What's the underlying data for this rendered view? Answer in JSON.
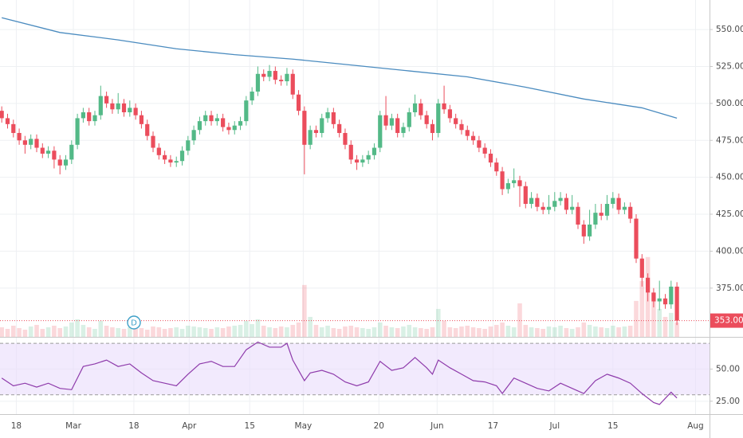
{
  "chart_data": {
    "type": "candlestick",
    "xlim": [
      -0.3,
      121.6
    ],
    "xticks": [
      {
        "value": 2.5,
        "label": "18"
      },
      {
        "value": 12.3,
        "label": "Mar"
      },
      {
        "value": 22.7,
        "label": "18"
      },
      {
        "value": 32.2,
        "label": "Apr"
      },
      {
        "value": 42.6,
        "label": "15"
      },
      {
        "value": 51.8,
        "label": "May"
      },
      {
        "value": 64.8,
        "label": "20"
      },
      {
        "value": 74.8,
        "label": "Jun"
      },
      {
        "value": 84.4,
        "label": "17"
      },
      {
        "value": 95,
        "label": "Jul"
      },
      {
        "value": 105,
        "label": "15"
      },
      {
        "value": 119.2,
        "label": "Aug"
      }
    ],
    "ylim": [
      342,
      570
    ],
    "yticks": [
      {
        "value": 375,
        "label": "375.00"
      },
      {
        "value": 400,
        "label": "400.00"
      },
      {
        "value": 425,
        "label": "425.00"
      },
      {
        "value": 450,
        "label": "450.00"
      },
      {
        "value": 475,
        "label": "475.00"
      },
      {
        "value": 500,
        "label": "500.00"
      },
      {
        "value": 525,
        "label": "525.00"
      },
      {
        "value": 550,
        "label": "550.00"
      }
    ],
    "grid": true,
    "up_color": "#53b987",
    "down_color": "#eb4d5c",
    "open": [
      495,
      490,
      486,
      480,
      475,
      472,
      476,
      470,
      466,
      468,
      462,
      458,
      462,
      472,
      490,
      494,
      488,
      492,
      505,
      500,
      496,
      500,
      494,
      497,
      492,
      486,
      478,
      470,
      465,
      462,
      460,
      461,
      468,
      475,
      482,
      488,
      492,
      488,
      490,
      484,
      482,
      485,
      488,
      502,
      508,
      520,
      518,
      522,
      516,
      515,
      520,
      506,
      495,
      472,
      482,
      480,
      490,
      494,
      486,
      480,
      472,
      462,
      460,
      462,
      465,
      470,
      492,
      485,
      490,
      480,
      484,
      494,
      500,
      492,
      486,
      480,
      500,
      496,
      490,
      486,
      482,
      478,
      475,
      470,
      466,
      460,
      454,
      442,
      446,
      448,
      444,
      432,
      436,
      430,
      428,
      430,
      434,
      436,
      428,
      430,
      418,
      410,
      418,
      426,
      424,
      432,
      436,
      428,
      430,
      422,
      395,
      382,
      372,
      366,
      368,
      364,
      376
    ],
    "high": [
      498,
      493,
      489,
      483,
      478,
      479,
      479,
      473,
      471,
      471,
      465,
      465,
      475,
      493,
      497,
      497,
      495,
      512,
      508,
      503,
      507,
      503,
      502,
      500,
      495,
      489,
      481,
      473,
      468,
      465,
      464,
      471,
      478,
      485,
      491,
      495,
      495,
      493,
      493,
      487,
      488,
      491,
      505,
      511,
      525,
      523,
      526,
      525,
      519,
      524,
      523,
      509,
      498,
      485,
      485,
      493,
      497,
      497,
      489,
      483,
      475,
      465,
      465,
      468,
      473,
      495,
      505,
      493,
      493,
      487,
      497,
      506,
      503,
      495,
      489,
      503,
      512,
      499,
      493,
      489,
      485,
      481,
      478,
      473,
      469,
      463,
      457,
      449,
      456,
      451,
      447,
      440,
      439,
      433,
      438,
      440,
      440,
      439,
      438,
      433,
      421,
      428,
      432,
      432,
      438,
      440,
      439,
      433,
      433,
      425,
      398,
      385,
      375,
      380,
      371,
      380,
      379
    ],
    "low": [
      487,
      483,
      477,
      472,
      466,
      469,
      467,
      463,
      463,
      456,
      452,
      455,
      459,
      469,
      487,
      485,
      485,
      489,
      497,
      493,
      493,
      491,
      491,
      489,
      483,
      475,
      467,
      462,
      459,
      457,
      457,
      458,
      465,
      472,
      479,
      485,
      485,
      485,
      481,
      479,
      479,
      482,
      485,
      499,
      505,
      515,
      515,
      513,
      512,
      512,
      503,
      492,
      452,
      469,
      477,
      477,
      487,
      483,
      477,
      469,
      459,
      455,
      457,
      459,
      462,
      467,
      482,
      482,
      477,
      477,
      481,
      491,
      489,
      483,
      475,
      477,
      493,
      487,
      483,
      479,
      475,
      472,
      467,
      463,
      457,
      451,
      438,
      439,
      443,
      430,
      429,
      429,
      427,
      425,
      425,
      427,
      431,
      425,
      425,
      415,
      405,
      407,
      415,
      421,
      421,
      429,
      425,
      425,
      419,
      392,
      376,
      366,
      362,
      360,
      361,
      361,
      350
    ],
    "close": [
      490,
      486,
      480,
      475,
      472,
      476,
      470,
      466,
      468,
      462,
      458,
      462,
      472,
      490,
      494,
      488,
      492,
      505,
      500,
      496,
      500,
      494,
      497,
      492,
      486,
      478,
      470,
      465,
      462,
      460,
      461,
      468,
      475,
      482,
      488,
      492,
      488,
      490,
      484,
      482,
      485,
      488,
      502,
      508,
      520,
      518,
      522,
      516,
      515,
      520,
      506,
      495,
      472,
      482,
      480,
      490,
      494,
      486,
      480,
      472,
      462,
      460,
      462,
      465,
      470,
      492,
      485,
      490,
      480,
      484,
      494,
      500,
      492,
      486,
      480,
      500,
      496,
      490,
      486,
      482,
      478,
      475,
      470,
      466,
      460,
      454,
      442,
      446,
      448,
      444,
      432,
      436,
      430,
      428,
      430,
      434,
      436,
      428,
      430,
      418,
      410,
      418,
      426,
      424,
      432,
      436,
      428,
      430,
      422,
      395,
      382,
      372,
      366,
      368,
      364,
      376,
      353
    ],
    "volume": {
      "vlim": [
        0,
        422
      ],
      "color": "#d9d9d9",
      "values": [
        12,
        10,
        14,
        11,
        9,
        13,
        15,
        10,
        12,
        14,
        11,
        13,
        18,
        22,
        15,
        12,
        10,
        20,
        14,
        12,
        11,
        10,
        12,
        14,
        11,
        9,
        13,
        12,
        10,
        11,
        12,
        10,
        14,
        13,
        12,
        11,
        10,
        12,
        11,
        13,
        14,
        15,
        20,
        16,
        22,
        14,
        12,
        11,
        13,
        12,
        15,
        18,
        65,
        25,
        15,
        12,
        14,
        11,
        10,
        13,
        14,
        12,
        11,
        10,
        12,
        18,
        14,
        12,
        11,
        13,
        15,
        12,
        11,
        10,
        12,
        35,
        20,
        12,
        11,
        13,
        14,
        12,
        11,
        10,
        13,
        15,
        18,
        14,
        12,
        42,
        15,
        12,
        11,
        10,
        13,
        12,
        14,
        11,
        10,
        12,
        18,
        15,
        13,
        12,
        11,
        14,
        12,
        13,
        14,
        45,
        70,
        100,
        55,
        35,
        25,
        30,
        18
      ]
    },
    "moving_average": {
      "color": "#4a8bbf",
      "x": [
        0,
        10,
        20,
        30,
        40,
        50,
        60,
        70,
        80,
        90,
        100,
        110,
        116
      ],
      "values": [
        558,
        548,
        543,
        537,
        533,
        530,
        526,
        522,
        518,
        511,
        503,
        497,
        490
      ]
    },
    "last_price": {
      "value": 353,
      "label": "353.00",
      "color": "#eb4d5c"
    },
    "marker_label": "D",
    "rsi": {
      "color": "#8e3bab",
      "band": [
        30,
        70
      ],
      "band_color": "#e9dcfb",
      "ylim": [
        15,
        74.4
      ],
      "yticks": [
        {
          "value": 25,
          "label": "25.00"
        },
        {
          "value": 50,
          "label": "50.00"
        }
      ],
      "x": [
        0,
        2,
        4,
        6,
        8,
        10,
        12,
        13,
        14,
        16,
        18,
        20,
        22,
        24,
        26,
        28,
        30,
        32,
        34,
        36,
        38,
        40,
        42,
        44,
        46,
        48,
        49,
        50,
        52,
        53,
        55,
        57,
        59,
        61,
        63,
        65,
        67,
        69,
        71,
        73,
        74,
        75,
        77,
        79,
        81,
        83,
        85,
        86,
        88,
        90,
        92,
        94,
        96,
        98,
        100,
        102,
        104,
        106,
        108,
        110,
        112,
        113,
        115,
        116
      ],
      "values": [
        43,
        37,
        39,
        36,
        39,
        35,
        34,
        43,
        52,
        54,
        57,
        52,
        54,
        47,
        41,
        39,
        37,
        46,
        54,
        56,
        52,
        52,
        65,
        71,
        67,
        67,
        70,
        57,
        41,
        47,
        49,
        46,
        40,
        37,
        40,
        56,
        49,
        51,
        59,
        51,
        46,
        57,
        51,
        46,
        41,
        40,
        37,
        31,
        43,
        39,
        35,
        33,
        39,
        35,
        31,
        41,
        46,
        43,
        39,
        31,
        24,
        22.5,
        32,
        27.5
      ]
    }
  }
}
